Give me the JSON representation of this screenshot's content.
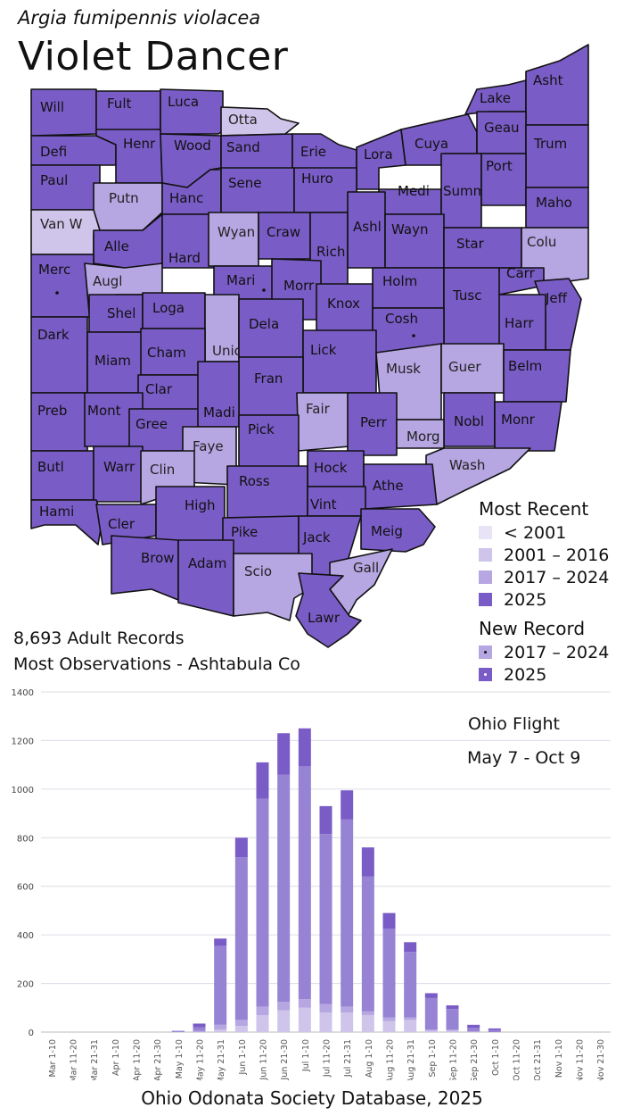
{
  "header": {
    "scientific_name": "Argia fumipennis violacea",
    "common_name": "Violet Dancer"
  },
  "colors": {
    "pre_2001": "#e8e4f5",
    "y2001_2016": "#cfc5ea",
    "y2017_2024": "#b6a6e2",
    "y2025": "#7a5cc6",
    "county_border": "#111111"
  },
  "map": {
    "counties": [
      {
        "label": "Will",
        "category": "2025"
      },
      {
        "label": "Fult",
        "category": "2025"
      },
      {
        "label": "Luca",
        "category": "2025"
      },
      {
        "label": "Otta",
        "category": "2001-2016"
      },
      {
        "label": "Lake",
        "category": "2025"
      },
      {
        "label": "Asht",
        "category": "2025"
      },
      {
        "label": "Defi",
        "category": "2025"
      },
      {
        "label": "Henr",
        "category": "2025"
      },
      {
        "label": "Wood",
        "category": "2025"
      },
      {
        "label": "Sand",
        "category": "2025"
      },
      {
        "label": "Erie",
        "category": "2025"
      },
      {
        "label": "Lora",
        "category": "2025"
      },
      {
        "label": "Cuya",
        "category": "2025"
      },
      {
        "label": "Geau",
        "category": "2025"
      },
      {
        "label": "Trum",
        "category": "2025"
      },
      {
        "label": "Paul",
        "category": "2025"
      },
      {
        "label": "Putn",
        "category": "2017-2024"
      },
      {
        "label": "Hanc",
        "category": "2025"
      },
      {
        "label": "Sene",
        "category": "2025"
      },
      {
        "label": "Huro",
        "category": "2025"
      },
      {
        "label": "Medi",
        "category": "2025"
      },
      {
        "label": "Summ",
        "category": "2025"
      },
      {
        "label": "Port",
        "category": "2025"
      },
      {
        "label": "Maho",
        "category": "2025"
      },
      {
        "label": "Van W",
        "category": "2001-2016"
      },
      {
        "label": "Alle",
        "category": "2025"
      },
      {
        "label": "Hard",
        "category": "2025"
      },
      {
        "label": "Wyan",
        "category": "2017-2024"
      },
      {
        "label": "Craw",
        "category": "2025"
      },
      {
        "label": "Rich",
        "category": "2025"
      },
      {
        "label": "Ashl",
        "category": "2025"
      },
      {
        "label": "Wayn",
        "category": "2025"
      },
      {
        "label": "Star",
        "category": "2025"
      },
      {
        "label": "Colu",
        "category": "2017-2024"
      },
      {
        "label": "Merc",
        "category": "2025",
        "new_record": "2025"
      },
      {
        "label": "Augl",
        "category": "2017-2024"
      },
      {
        "label": "Mari",
        "category": "2025",
        "new_record": "2025"
      },
      {
        "label": "Morr",
        "category": "2025"
      },
      {
        "label": "Holm",
        "category": "2025"
      },
      {
        "label": "Tusc",
        "category": "2025"
      },
      {
        "label": "Carr",
        "category": "2025"
      },
      {
        "label": "Jeff",
        "category": "2025"
      },
      {
        "label": "Shel",
        "category": "2025"
      },
      {
        "label": "Loga",
        "category": "2025"
      },
      {
        "label": "Unio",
        "category": "2017-2024"
      },
      {
        "label": "Dela",
        "category": "2025"
      },
      {
        "label": "Knox",
        "category": "2025"
      },
      {
        "label": "Cosh",
        "category": "2025",
        "new_record": "2025"
      },
      {
        "label": "Harr",
        "category": "2025"
      },
      {
        "label": "Dark",
        "category": "2025"
      },
      {
        "label": "Miam",
        "category": "2025"
      },
      {
        "label": "Cham",
        "category": "2025"
      },
      {
        "label": "Lick",
        "category": "2025"
      },
      {
        "label": "Musk",
        "category": "2017-2024"
      },
      {
        "label": "Guer",
        "category": "2017-2024"
      },
      {
        "label": "Belm",
        "category": "2025"
      },
      {
        "label": "Clar",
        "category": "2025"
      },
      {
        "label": "Fran",
        "category": "2025"
      },
      {
        "label": "Preb",
        "category": "2025"
      },
      {
        "label": "Mont",
        "category": "2025"
      },
      {
        "label": "Gree",
        "category": "2025"
      },
      {
        "label": "Madi",
        "category": "2025"
      },
      {
        "label": "Fair",
        "category": "2017-2024"
      },
      {
        "label": "Perr",
        "category": "2025"
      },
      {
        "label": "Nobl",
        "category": "2025"
      },
      {
        "label": "Monr",
        "category": "2025"
      },
      {
        "label": "Faye",
        "category": "2017-2024"
      },
      {
        "label": "Pick",
        "category": "2025"
      },
      {
        "label": "Morg",
        "category": "2017-2024"
      },
      {
        "label": "Butl",
        "category": "2025"
      },
      {
        "label": "Warr",
        "category": "2025"
      },
      {
        "label": "Clin",
        "category": "2017-2024"
      },
      {
        "label": "Hock",
        "category": "2025"
      },
      {
        "label": "Wash",
        "category": "2017-2024"
      },
      {
        "label": "Ross",
        "category": "2025"
      },
      {
        "label": "Athe",
        "category": "2025"
      },
      {
        "label": "Hami",
        "category": "2025"
      },
      {
        "label": "Cler",
        "category": "2025"
      },
      {
        "label": "High",
        "category": "2025"
      },
      {
        "label": "Vint",
        "category": "2025"
      },
      {
        "label": "Meig",
        "category": "2025"
      },
      {
        "label": "Pike",
        "category": "2025"
      },
      {
        "label": "Jack",
        "category": "2025"
      },
      {
        "label": "Brow",
        "category": "2025"
      },
      {
        "label": "Adam",
        "category": "2025"
      },
      {
        "label": "Scio",
        "category": "2017-2024"
      },
      {
        "label": "Gall",
        "category": "2017-2024"
      },
      {
        "label": "Lawr",
        "category": "2025"
      }
    ]
  },
  "legend": {
    "most_recent_title": "Most Recent",
    "most_recent_items": [
      {
        "label": "< 2001",
        "color": "#e8e4f5"
      },
      {
        "label": "2001 – 2016",
        "color": "#cfc5ea"
      },
      {
        "label": "2017 – 2024",
        "color": "#b6a6e2"
      },
      {
        "label": "2025",
        "color": "#7a5cc6"
      }
    ],
    "new_record_title": "New Record",
    "new_record_items": [
      {
        "label": "2017 – 2024",
        "color": "#b6a6e2"
      },
      {
        "label": "2025",
        "color": "#7a5cc6"
      }
    ]
  },
  "stats": {
    "records": "8,693  Adult Records",
    "most_observations": "Most Observations - Ashtabula Co"
  },
  "flight": {
    "title": "Ohio Flight",
    "range": "May 7 - Oct 9"
  },
  "footer": "Ohio Odonata Society Database, 2025",
  "chart_data": {
    "type": "bar",
    "stacked": true,
    "ylim": [
      0,
      1400
    ],
    "yticks": [
      0,
      200,
      400,
      600,
      800,
      1000,
      1200,
      1400
    ],
    "grid": true,
    "categories": [
      "Mar 1-10",
      "Mar 11-20",
      "Mar 21-31",
      "Apr 1-10",
      "Apr 11-20",
      "Apr 21-30",
      "May 1-10",
      "May 11-20",
      "May 21-31",
      "Jun 1-10",
      "Jun 11-20",
      "Jun 21-30",
      "Jul 1-10",
      "Jul 11-20",
      "Jul 21-31",
      "Aug 1-10",
      "Aug 11-20",
      "Aug 21-31",
      "Sep 1-10",
      "Sep 11-20",
      "Sep 21-30",
      "Oct 1-10",
      "Oct 11-20",
      "Oct 21-31",
      "Nov 1-10",
      "Nov 11-20",
      "Nov 21-30"
    ],
    "series": [
      {
        "color": "#cfc5ea",
        "values": [
          0,
          0,
          0,
          0,
          0,
          0,
          0,
          0,
          10,
          25,
          70,
          90,
          100,
          80,
          80,
          70,
          45,
          50,
          5,
          5,
          0,
          0,
          0,
          0,
          0,
          0,
          0
        ]
      },
      {
        "color": "#b6a6e2",
        "values": [
          0,
          0,
          0,
          0,
          0,
          0,
          0,
          5,
          20,
          25,
          35,
          35,
          35,
          35,
          25,
          15,
          15,
          10,
          5,
          5,
          3,
          0,
          0,
          0,
          0,
          0,
          0
        ]
      },
      {
        "color": "#9683d4",
        "values": [
          0,
          0,
          0,
          0,
          0,
          0,
          3,
          15,
          325,
          670,
          855,
          935,
          960,
          700,
          770,
          555,
          365,
          270,
          130,
          85,
          14,
          8,
          0,
          0,
          0,
          0,
          0
        ]
      },
      {
        "color": "#7a5cc6",
        "values": [
          0,
          0,
          0,
          0,
          0,
          0,
          2,
          15,
          30,
          80,
          150,
          170,
          155,
          115,
          120,
          120,
          65,
          40,
          20,
          15,
          13,
          7,
          0,
          0,
          0,
          0,
          0
        ]
      }
    ]
  }
}
